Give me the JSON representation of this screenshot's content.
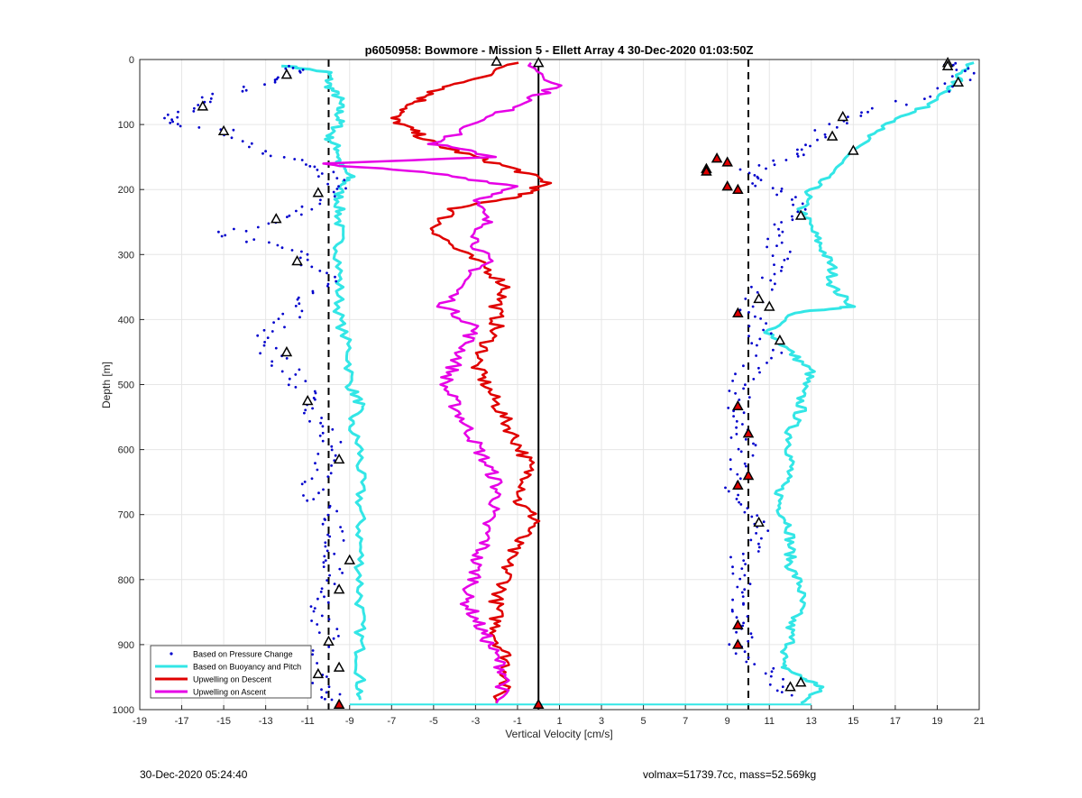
{
  "chart_data": {
    "type": "scatter",
    "title": "p6050958: Bowmore - Mission 5 - Ellett Array 4 30-Dec-2020 01:03:50Z",
    "xlabel": "Vertical Velocity [cm/s]",
    "ylabel": "Depth [m]",
    "xlim": [
      -19,
      21
    ],
    "ylim": [
      1000,
      0
    ],
    "y_reversed": true,
    "grid": true,
    "legend_position": "bottom-left",
    "xticks": [
      -19,
      -17,
      -15,
      -13,
      -11,
      -9,
      -7,
      -5,
      -3,
      -1,
      1,
      3,
      5,
      7,
      9,
      11,
      13,
      15,
      17,
      19,
      21
    ],
    "yticks": [
      0,
      100,
      200,
      300,
      400,
      500,
      600,
      700,
      800,
      900,
      1000
    ],
    "reference_lines": {
      "vertical_solid": 0,
      "vertical_dashed": [
        -10,
        10
      ]
    },
    "series": [
      {
        "name": "Based on Pressure Change",
        "style": "dots",
        "color": "#0000cc",
        "descent": [
          [
            -12,
            10
          ],
          [
            -11.5,
            20
          ],
          [
            -13,
            40
          ],
          [
            -16,
            60
          ],
          [
            -17,
            80
          ],
          [
            -18,
            95
          ],
          [
            -15,
            110
          ],
          [
            -13,
            140
          ],
          [
            -11,
            160
          ],
          [
            -10,
            180
          ],
          [
            -9.5,
            200
          ],
          [
            -11,
            230
          ],
          [
            -13,
            250
          ],
          [
            -15,
            270
          ],
          [
            -12,
            290
          ],
          [
            -11,
            310
          ],
          [
            -10,
            340
          ],
          [
            -11.5,
            370
          ],
          [
            -12,
            400
          ],
          [
            -13,
            430
          ],
          [
            -12.5,
            460
          ],
          [
            -11.5,
            490
          ],
          [
            -11,
            520
          ],
          [
            -10.5,
            550
          ],
          [
            -10,
            580
          ],
          [
            -10,
            610
          ],
          [
            -10.5,
            640
          ],
          [
            -11,
            670
          ],
          [
            -10,
            700
          ],
          [
            -9.5,
            730
          ],
          [
            -10,
            760
          ],
          [
            -9.5,
            790
          ],
          [
            -10,
            820
          ],
          [
            -10.5,
            850
          ],
          [
            -10,
            880
          ],
          [
            -10.5,
            910
          ],
          [
            -11,
            940
          ],
          [
            -10,
            970
          ],
          [
            -9.5,
            990
          ]
        ],
        "ascent": [
          [
            19.5,
            5
          ],
          [
            20.5,
            20
          ],
          [
            19,
            50
          ],
          [
            16,
            80
          ],
          [
            14,
            100
          ],
          [
            13,
            130
          ],
          [
            12,
            150
          ],
          [
            10,
            170
          ],
          [
            10.5,
            190
          ],
          [
            12,
            210
          ],
          [
            12.5,
            240
          ],
          [
            11,
            270
          ],
          [
            11.5,
            300
          ],
          [
            11,
            330
          ],
          [
            10.5,
            360
          ],
          [
            10,
            390
          ],
          [
            10.5,
            420
          ],
          [
            11,
            450
          ],
          [
            10,
            480
          ],
          [
            9.5,
            510
          ],
          [
            9.5,
            540
          ],
          [
            9.5,
            570
          ],
          [
            10,
            600
          ],
          [
            9.5,
            630
          ],
          [
            9.5,
            660
          ],
          [
            10,
            690
          ],
          [
            10.5,
            720
          ],
          [
            10,
            750
          ],
          [
            9.5,
            780
          ],
          [
            9.5,
            810
          ],
          [
            9.5,
            840
          ],
          [
            10,
            870
          ],
          [
            9.5,
            900
          ],
          [
            10.5,
            930
          ],
          [
            11.5,
            960
          ],
          [
            12,
            980
          ]
        ]
      },
      {
        "name": "Based on Buoyancy and Pitch",
        "style": "line",
        "color": "#33e6e6",
        "descent": [
          [
            -12,
            10
          ],
          [
            -10,
            20
          ],
          [
            -10,
            40
          ],
          [
            -9.5,
            60
          ],
          [
            -9.5,
            80
          ],
          [
            -9.5,
            100
          ],
          [
            -10,
            120
          ],
          [
            -9.5,
            140
          ],
          [
            -9.5,
            160
          ],
          [
            -9,
            180
          ],
          [
            -9.5,
            200
          ],
          [
            -9.5,
            230
          ],
          [
            -9.5,
            260
          ],
          [
            -9.5,
            300
          ],
          [
            -9.5,
            350
          ],
          [
            -9.5,
            400
          ],
          [
            -9,
            450
          ],
          [
            -9,
            500
          ],
          [
            -8.5,
            530
          ],
          [
            -9,
            560
          ],
          [
            -8.5,
            600
          ],
          [
            -8.5,
            650
          ],
          [
            -8.5,
            700
          ],
          [
            -8.5,
            750
          ],
          [
            -8.5,
            800
          ],
          [
            -8.5,
            850
          ],
          [
            -8.5,
            900
          ],
          [
            -8.5,
            950
          ],
          [
            -8.5,
            985
          ]
        ],
        "ascent": [
          [
            20.5,
            5
          ],
          [
            20,
            30
          ],
          [
            19.5,
            50
          ],
          [
            18,
            80
          ],
          [
            16,
            110
          ],
          [
            15,
            140
          ],
          [
            14,
            170
          ],
          [
            13,
            200
          ],
          [
            12.5,
            230
          ],
          [
            13,
            260
          ],
          [
            13.5,
            290
          ],
          [
            14,
            320
          ],
          [
            14,
            350
          ],
          [
            15,
            380
          ],
          [
            12,
            390
          ],
          [
            11,
            420
          ],
          [
            12,
            450
          ],
          [
            13,
            480
          ],
          [
            12.5,
            510
          ],
          [
            12.5,
            540
          ],
          [
            12,
            570
          ],
          [
            12,
            600
          ],
          [
            12,
            630
          ],
          [
            11.5,
            660
          ],
          [
            11.5,
            690
          ],
          [
            12,
            720
          ],
          [
            12,
            750
          ],
          [
            12,
            780
          ],
          [
            12.5,
            810
          ],
          [
            12.5,
            840
          ],
          [
            12,
            870
          ],
          [
            12,
            900
          ],
          [
            11.5,
            930
          ],
          [
            12.5,
            950
          ],
          [
            13.5,
            965
          ],
          [
            12.5,
            990
          ]
        ],
        "bottom_line": [
          [
            -9,
            992
          ],
          [
            13,
            992
          ]
        ]
      },
      {
        "name": "Upwelling on Descent",
        "style": "line",
        "color": "#e00000",
        "points": [
          [
            -1,
            5
          ],
          [
            -3,
            30
          ],
          [
            -5,
            50
          ],
          [
            -6,
            70
          ],
          [
            -7,
            90
          ],
          [
            -6,
            110
          ],
          [
            -5,
            130
          ],
          [
            -3,
            150
          ],
          [
            -1,
            170
          ],
          [
            0.5,
            190
          ],
          [
            -1,
            210
          ],
          [
            -4,
            230
          ],
          [
            -5,
            260
          ],
          [
            -4,
            290
          ],
          [
            -2.5,
            320
          ],
          [
            -1.5,
            350
          ],
          [
            -2,
            380
          ],
          [
            -2,
            410
          ],
          [
            -2.5,
            440
          ],
          [
            -3,
            470
          ],
          [
            -2.5,
            500
          ],
          [
            -2,
            530
          ],
          [
            -1.5,
            560
          ],
          [
            -1,
            590
          ],
          [
            -0.5,
            620
          ],
          [
            -0.5,
            650
          ],
          [
            -1,
            680
          ],
          [
            0,
            710
          ],
          [
            -1,
            740
          ],
          [
            -1.5,
            770
          ],
          [
            -1.5,
            800
          ],
          [
            -2,
            830
          ],
          [
            -2,
            860
          ],
          [
            -2,
            890
          ],
          [
            -1.5,
            920
          ],
          [
            -1.5,
            950
          ],
          [
            -2,
            990
          ]
        ]
      },
      {
        "name": "Upwelling on Ascent",
        "style": "line",
        "color": "#e600e6",
        "points": [
          [
            -0.5,
            5
          ],
          [
            1,
            40
          ],
          [
            -1,
            70
          ],
          [
            -3,
            100
          ],
          [
            -5,
            130
          ],
          [
            -2,
            150
          ],
          [
            -10.5,
            160
          ],
          [
            -5,
            175
          ],
          [
            -1,
            195
          ],
          [
            -3,
            220
          ],
          [
            -2.5,
            250
          ],
          [
            -3,
            280
          ],
          [
            -2.5,
            310
          ],
          [
            -3.5,
            340
          ],
          [
            -4.5,
            380
          ],
          [
            -3,
            410
          ],
          [
            -3.5,
            440
          ],
          [
            -4,
            470
          ],
          [
            -4.5,
            500
          ],
          [
            -4,
            530
          ],
          [
            -3.5,
            560
          ],
          [
            -3,
            590
          ],
          [
            -2.5,
            620
          ],
          [
            -2,
            650
          ],
          [
            -2,
            680
          ],
          [
            -2.5,
            710
          ],
          [
            -2.5,
            740
          ],
          [
            -3,
            770
          ],
          [
            -3,
            800
          ],
          [
            -3.5,
            830
          ],
          [
            -3,
            860
          ],
          [
            -2.5,
            890
          ],
          [
            -2,
            920
          ],
          [
            -1.5,
            950
          ],
          [
            -2,
            990
          ]
        ]
      }
    ],
    "markers": {
      "open_triangles": [
        [
          -2,
          3
        ],
        [
          -12,
          23
        ],
        [
          -16,
          72
        ],
        [
          -15,
          110
        ],
        [
          -10.5,
          205
        ],
        [
          -12.5,
          245
        ],
        [
          -11.5,
          310
        ],
        [
          -12,
          450
        ],
        [
          -11,
          525
        ],
        [
          -9.5,
          615
        ],
        [
          -9,
          770
        ],
        [
          -9.5,
          815
        ],
        [
          -10,
          895
        ],
        [
          -9.5,
          935
        ],
        [
          -10.5,
          945
        ],
        [
          19.5,
          5
        ],
        [
          20,
          35
        ],
        [
          14.5,
          88
        ],
        [
          14,
          118
        ],
        [
          15,
          140
        ],
        [
          12.5,
          240
        ],
        [
          10.5,
          368
        ],
        [
          11,
          380
        ],
        [
          11.5,
          432
        ],
        [
          10.5,
          712
        ],
        [
          12,
          965
        ],
        [
          12.5,
          958
        ],
        [
          19.5,
          10
        ],
        [
          0,
          5
        ]
      ],
      "filled_triangles": [
        [
          8.5,
          152
        ],
        [
          9,
          158
        ],
        [
          8,
          168
        ],
        [
          8,
          172
        ],
        [
          9,
          195
        ],
        [
          9.5,
          200
        ],
        [
          9.5,
          390
        ],
        [
          9.5,
          533
        ],
        [
          10,
          575
        ],
        [
          10,
          640
        ],
        [
          9.5,
          655
        ],
        [
          9.5,
          870
        ],
        [
          9.5,
          900
        ],
        [
          -9.5,
          992
        ],
        [
          0,
          992
        ]
      ]
    }
  },
  "footer": {
    "left": "30-Dec-2020 05:24:40",
    "right": "volmax=51739.7cc, mass=52.569kg"
  }
}
